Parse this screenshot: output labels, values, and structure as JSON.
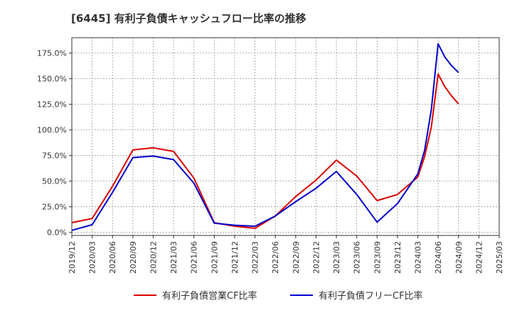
{
  "chart_data": {
    "type": "line",
    "title": "[6445]  有利子負債キャッシュフロー比率の推移",
    "xlabel": "",
    "ylabel": "",
    "ylim": [
      -3,
      190
    ],
    "grid": true,
    "legend_position": "bottom",
    "x_ticks": [
      "2019/12",
      "2020/03",
      "2020/06",
      "2020/09",
      "2020/12",
      "2021/03",
      "2021/06",
      "2021/09",
      "2021/12",
      "2022/03",
      "2022/06",
      "2022/09",
      "2022/12",
      "2023/03",
      "2023/06",
      "2023/09",
      "2023/12",
      "2024/03",
      "2024/06",
      "2024/09",
      "2024/12",
      "2025/03"
    ],
    "y_ticks": [
      {
        "value": 0,
        "label": "0.0%"
      },
      {
        "value": 25,
        "label": "25.0%"
      },
      {
        "value": 50,
        "label": "50.0%"
      },
      {
        "value": 75,
        "label": "75.0%"
      },
      {
        "value": 100,
        "label": "100.0%"
      },
      {
        "value": 125,
        "label": "125.0%"
      },
      {
        "value": 150,
        "label": "150.0%"
      },
      {
        "value": 175,
        "label": "175.0%"
      }
    ],
    "series": [
      {
        "name": "有利子負債営業CF比率",
        "color": "#dd0000",
        "points": [
          [
            "2019/12",
            9.5
          ],
          [
            "2020/03",
            13.5
          ],
          [
            "2020/06",
            45.0
          ],
          [
            "2020/09",
            80.5
          ],
          [
            "2020/12",
            82.5
          ],
          [
            "2021/03",
            79.0
          ],
          [
            "2021/06",
            53.0
          ],
          [
            "2021/09",
            9.5
          ],
          [
            "2021/12",
            6.0
          ],
          [
            "2022/03",
            4.0
          ],
          [
            "2022/06",
            16.0
          ],
          [
            "2022/09",
            35.0
          ],
          [
            "2022/12",
            51.0
          ],
          [
            "2023/03",
            70.5
          ],
          [
            "2023/06",
            55.0
          ],
          [
            "2023/09",
            31.0
          ],
          [
            "2023/12",
            37.0
          ],
          [
            "2024/03",
            54.0
          ],
          [
            "2024/04",
            74.0
          ],
          [
            "2024/05",
            103.0
          ],
          [
            "2024/06",
            154.5
          ],
          [
            "2024/07",
            142.0
          ],
          [
            "2024/08",
            133.0
          ],
          [
            "2024/09",
            125.5
          ]
        ]
      },
      {
        "name": "有利子負債フリーCF比率",
        "color": "#0000cc",
        "points": [
          [
            "2019/12",
            2.0
          ],
          [
            "2020/03",
            7.5
          ],
          [
            "2020/06",
            39.0
          ],
          [
            "2020/09",
            73.0
          ],
          [
            "2020/12",
            74.5
          ],
          [
            "2021/03",
            71.0
          ],
          [
            "2021/06",
            48.0
          ],
          [
            "2021/09",
            9.0
          ],
          [
            "2021/12",
            7.0
          ],
          [
            "2022/03",
            6.0
          ],
          [
            "2022/06",
            16.0
          ],
          [
            "2022/09",
            30.0
          ],
          [
            "2022/12",
            43.0
          ],
          [
            "2023/03",
            59.5
          ],
          [
            "2023/06",
            37.0
          ],
          [
            "2023/09",
            10.0
          ],
          [
            "2023/12",
            28.0
          ],
          [
            "2024/03",
            57.0
          ],
          [
            "2024/04",
            80.0
          ],
          [
            "2024/05",
            120.0
          ],
          [
            "2024/06",
            184.0
          ],
          [
            "2024/07",
            171.0
          ],
          [
            "2024/08",
            162.5
          ],
          [
            "2024/09",
            156.0
          ]
        ]
      }
    ]
  }
}
